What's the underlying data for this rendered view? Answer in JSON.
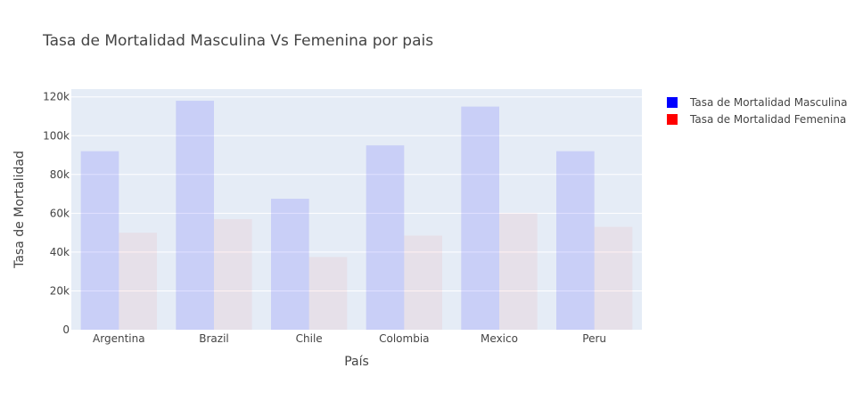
{
  "chart_data": {
    "type": "bar",
    "title": "Tasa de Mortalidad Masculina Vs Femenina por pais",
    "xlabel": "País",
    "ylabel": "Tasa de Mortalidad",
    "categories": [
      "Argentina",
      "Brazil",
      "Chile",
      "Colombia",
      "Mexico",
      "Peru"
    ],
    "series": [
      {
        "name": "Tasa de Mortalidad Masculina",
        "color": "#0000ff",
        "values": [
          92000,
          118000,
          67500,
          95000,
          115000,
          92000
        ]
      },
      {
        "name": "Tasa de Mortalidad Femenina",
        "color": "#ff0000",
        "values": [
          50000,
          57000,
          37500,
          48500,
          60000,
          53000
        ]
      }
    ],
    "ylim": [
      0,
      124000
    ],
    "yticks": [
      0,
      20000,
      40000,
      60000,
      80000,
      100000,
      120000
    ],
    "ytick_labels": [
      "0",
      "20k",
      "40k",
      "60k",
      "80k",
      "100k",
      "120k"
    ],
    "grid": true,
    "legend": "top-right",
    "plot_background": "#e5ecf6"
  }
}
